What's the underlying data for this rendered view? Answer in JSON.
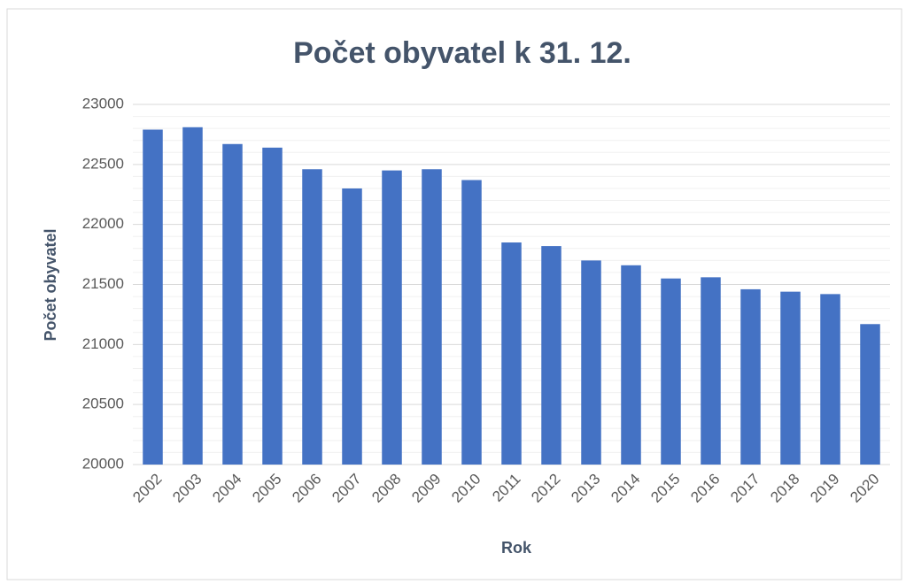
{
  "chart_data": {
    "type": "bar",
    "title": "Počet obyvatel k 31. 12.",
    "x_label": "Rok",
    "y_label": "Počet obyvatel",
    "categories": [
      "2002",
      "2003",
      "2004",
      "2005",
      "2006",
      "2007",
      "2008",
      "2009",
      "2010",
      "2011",
      "2012",
      "2013",
      "2014",
      "2015",
      "2016",
      "2017",
      "2018",
      "2019",
      "2020"
    ],
    "values": [
      22790,
      22810,
      22670,
      22640,
      22460,
      22300,
      22450,
      22460,
      22370,
      21850,
      21820,
      21700,
      21660,
      21550,
      21560,
      21460,
      21440,
      21420,
      21170
    ],
    "color": "#4472c4",
    "ylim": [
      20000,
      23000
    ],
    "yticks": [
      20000,
      20500,
      21000,
      21500,
      22000,
      22500,
      23000
    ],
    "minor_yticks": [
      20100,
      20200,
      20300,
      20400,
      20600,
      20700,
      20800,
      20900,
      21100,
      21200,
      21300,
      21400,
      21600,
      21700,
      21800,
      21900,
      22100,
      22200,
      22300,
      22400,
      22600,
      22700,
      22800,
      22900
    ],
    "grid": true
  }
}
